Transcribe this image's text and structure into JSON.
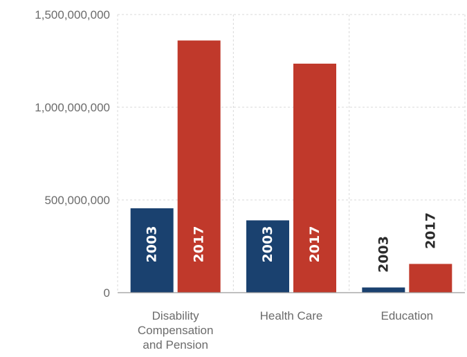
{
  "chart_data": {
    "type": "bar",
    "categories": [
      "Disability Compensation and Pension",
      "Health Care",
      "Education"
    ],
    "category_lines": [
      [
        "Disability",
        "Compensation",
        "and Pension"
      ],
      [
        "Health Care"
      ],
      [
        "Education"
      ]
    ],
    "series": [
      {
        "name": "2003",
        "color": "#1a416f",
        "values": [
          455000000,
          390000000,
          28000000
        ]
      },
      {
        "name": "2017",
        "color": "#c0392b",
        "values": [
          1360000000,
          1235000000,
          155000000
        ]
      }
    ],
    "ylim": [
      0,
      1500000000
    ],
    "yticks": [
      0,
      500000000,
      1000000000,
      1500000000
    ],
    "ytick_labels": [
      "0",
      "500,000,000",
      "1,000,000,000",
      "1,500,000,000"
    ],
    "bar_labels": [
      "2003",
      "2017"
    ],
    "label_colors": {
      "inside": "#ffffff",
      "outside": "#2b2b2b"
    },
    "title": "",
    "xlabel": "",
    "ylabel": "",
    "grid": true
  }
}
